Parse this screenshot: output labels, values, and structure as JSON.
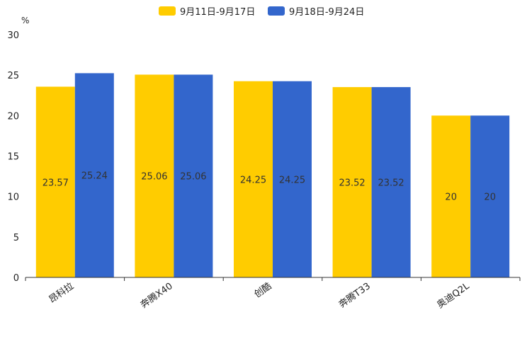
{
  "chart_data": {
    "type": "bar",
    "title": "",
    "ylabel": "%",
    "xlabel": "",
    "ylim": [
      0,
      30
    ],
    "yticks": [
      0,
      5,
      10,
      15,
      20,
      25,
      30
    ],
    "categories": [
      "昂科拉",
      "奔腾X40",
      "创酷",
      "奔腾T33",
      "奥迪Q2L"
    ],
    "series": [
      {
        "name": "9月11日-9月17日",
        "color": "#FFCC00",
        "values": [
          23.57,
          25.06,
          24.25,
          23.52,
          20
        ],
        "labels": [
          "23.57",
          "25.06",
          "24.25",
          "23.52",
          "20"
        ]
      },
      {
        "name": "9月18日-9月24日",
        "color": "#3366CC",
        "values": [
          25.24,
          25.06,
          24.25,
          23.52,
          20
        ],
        "labels": [
          "25.24",
          "25.06",
          "24.25",
          "23.52",
          "20"
        ]
      }
    ],
    "legend_position": "top-center"
  }
}
